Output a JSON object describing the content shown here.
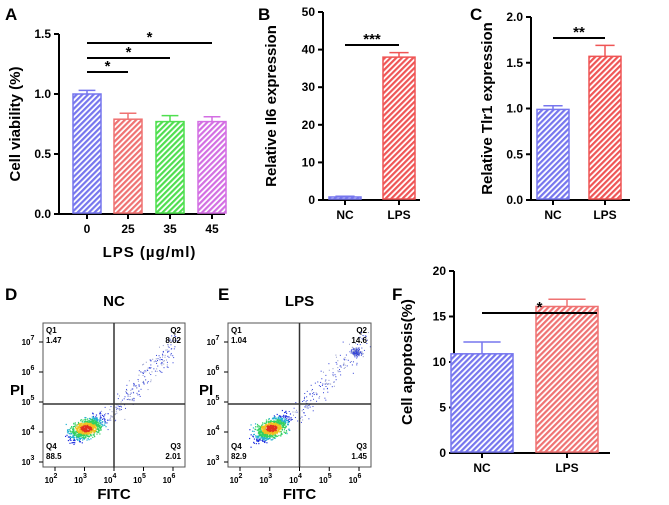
{
  "chart_data": [
    {
      "id": "A",
      "type": "bar",
      "panel_label": "A",
      "categories": [
        "0",
        "25",
        "35",
        "45"
      ],
      "values": [
        1.0,
        0.79,
        0.77,
        0.77
      ],
      "errors": [
        0.03,
        0.05,
        0.05,
        0.04
      ],
      "colors": [
        "#7676ee",
        "#ef7272",
        "#4fdf4f",
        "#d36ee3"
      ],
      "ylabel": "Cell viability (%)",
      "xlabel": "LPS (µg/ml)",
      "ylim": [
        0,
        1.5
      ],
      "yticks": [
        "0.0",
        "0.5",
        "1.0",
        "1.5"
      ],
      "significance": [
        {
          "from": 0,
          "to": 1,
          "label": "*"
        },
        {
          "from": 0,
          "to": 2,
          "label": "*"
        },
        {
          "from": 0,
          "to": 3,
          "label": "*"
        }
      ]
    },
    {
      "id": "B",
      "type": "bar",
      "panel_label": "B",
      "categories": [
        "NC",
        "LPS"
      ],
      "values": [
        0.8,
        38.0
      ],
      "errors": [
        0.2,
        1.2
      ],
      "colors": [
        "#7676ee",
        "#ef5555"
      ],
      "ylabel": "Relative Il6 expression",
      "xlabel": "",
      "ylim": [
        0,
        50
      ],
      "yticks": [
        "0",
        "10",
        "20",
        "30",
        "40",
        "50"
      ],
      "significance": [
        {
          "from": 0,
          "to": 1,
          "label": "***"
        }
      ]
    },
    {
      "id": "C",
      "type": "bar",
      "panel_label": "C",
      "categories": [
        "NC",
        "LPS"
      ],
      "values": [
        0.99,
        1.57
      ],
      "errors": [
        0.04,
        0.12
      ],
      "colors": [
        "#7676ee",
        "#ef5555"
      ],
      "ylabel": "Relative Tlr1 expression",
      "xlabel": "",
      "ylim": [
        0,
        2.0
      ],
      "yticks": [
        "0.0",
        "0.5",
        "1.0",
        "1.5",
        "2.0"
      ],
      "significance": [
        {
          "from": 0,
          "to": 1,
          "label": "**"
        }
      ]
    },
    {
      "id": "D",
      "type": "scatter",
      "panel_label": "D",
      "title": "NC",
      "xlabel": "FITC",
      "ylabel": "PI",
      "xticks": [
        "2",
        "3",
        "4",
        "5",
        "6"
      ],
      "yticks": [
        "3",
        "4",
        "5",
        "6",
        "7"
      ],
      "quadrants": {
        "Q1": "1.47",
        "Q2": "8.02",
        "Q3": "2.01",
        "Q4": "88.5"
      }
    },
    {
      "id": "E",
      "type": "scatter",
      "panel_label": "E",
      "title": "LPS",
      "xlabel": "FITC",
      "ylabel": "PI",
      "xticks": [
        "2",
        "3",
        "4",
        "5",
        "6"
      ],
      "yticks": [
        "3",
        "4",
        "5",
        "6",
        "7"
      ],
      "quadrants": {
        "Q1": "1.04",
        "Q2": "14.6",
        "Q3": "1.45",
        "Q4": "82.9"
      }
    },
    {
      "id": "F",
      "type": "bar",
      "panel_label": "F",
      "categories": [
        "NC",
        "LPS"
      ],
      "values": [
        10.9,
        16.1
      ],
      "errors": [
        1.3,
        0.8
      ],
      "colors": [
        "#7676ee",
        "#ef7272"
      ],
      "ylabel": "Cell apoptosis(%)",
      "xlabel": "",
      "ylim": [
        0,
        20
      ],
      "yticks": [
        "0",
        "5",
        "10",
        "15",
        "20"
      ],
      "significance": [
        {
          "from": 0,
          "to": 1,
          "label": "*"
        }
      ]
    }
  ]
}
